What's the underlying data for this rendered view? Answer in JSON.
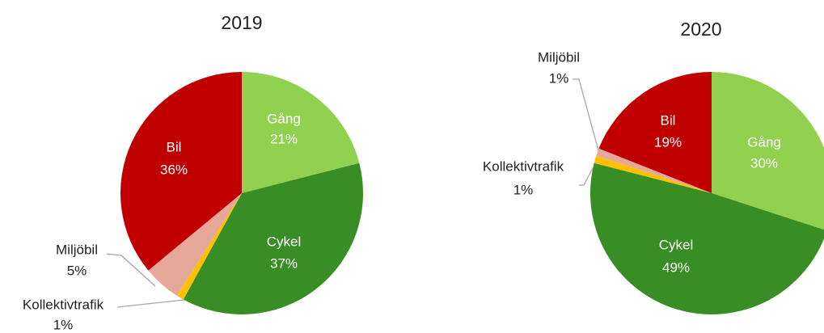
{
  "chart_data": [
    {
      "type": "pie",
      "title": "2019",
      "categories": [
        "Gång",
        "Cykel",
        "Kollektivtrafik",
        "Miljöbil",
        "Bil"
      ],
      "values": [
        21,
        37,
        1,
        5,
        36
      ],
      "value_labels": [
        "21%",
        "37%",
        "1%",
        "5%",
        "36%"
      ],
      "colors": [
        "#92d050",
        "#388e25",
        "#ffc000",
        "#e6a899",
        "#c00000"
      ]
    },
    {
      "type": "pie",
      "title": "2020",
      "categories": [
        "Gång",
        "Cykel",
        "Kollektivtrafik",
        "Miljöbil",
        "Bil"
      ],
      "values": [
        30,
        49,
        1,
        1,
        19
      ],
      "value_labels": [
        "30%",
        "49%",
        "1%",
        "1%",
        "19%"
      ],
      "colors": [
        "#92d050",
        "#388e25",
        "#ffc000",
        "#e6a899",
        "#c00000"
      ]
    }
  ]
}
